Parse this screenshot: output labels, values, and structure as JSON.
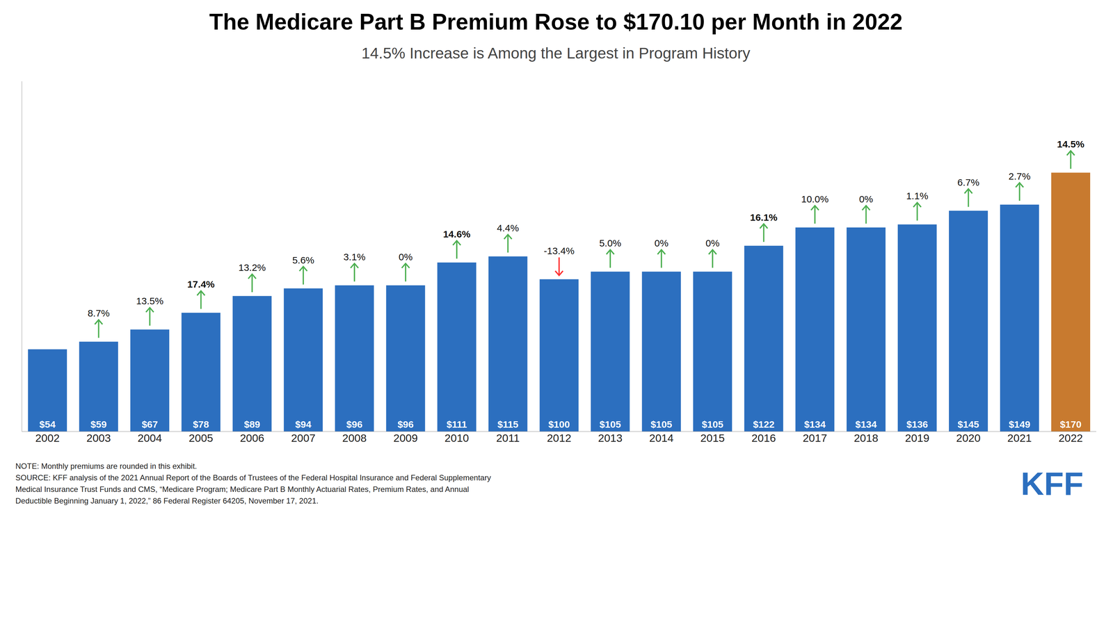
{
  "chart_data": {
    "type": "bar",
    "title": "The Medicare Part B Premium Rose to $170.10 per Month in 2022",
    "subtitle": "14.5% Increase is Among the Largest in Program History",
    "categories": [
      "2002",
      "2003",
      "2004",
      "2005",
      "2006",
      "2007",
      "2008",
      "2009",
      "2010",
      "2011",
      "2012",
      "2013",
      "2014",
      "2015",
      "2016",
      "2017",
      "2018",
      "2019",
      "2020",
      "2021",
      "2022"
    ],
    "values": [
      54,
      59,
      67,
      78,
      89,
      94,
      96,
      96,
      111,
      115,
      100,
      105,
      105,
      105,
      122,
      134,
      134,
      136,
      145,
      149,
      170
    ],
    "value_labels": [
      "$54",
      "$59",
      "$67",
      "$78",
      "$89",
      "$94",
      "$96",
      "$96",
      "$111",
      "$115",
      "$100",
      "$105",
      "$105",
      "$105",
      "$122",
      "$134",
      "$134",
      "$136",
      "$145",
      "$149",
      "$170"
    ],
    "data_labels": true,
    "colors": [
      "#2C6FBF",
      "#2C6FBF",
      "#2C6FBF",
      "#2C6FBF",
      "#2C6FBF",
      "#2C6FBF",
      "#2C6FBF",
      "#2C6FBF",
      "#2C6FBF",
      "#2C6FBF",
      "#2C6FBF",
      "#2C6FBF",
      "#2C6FBF",
      "#2C6FBF",
      "#2C6FBF",
      "#2C6FBF",
      "#2C6FBF",
      "#2C6FBF",
      "#2C6FBF",
      "#2C6FBF",
      "#C87A2F"
    ],
    "ylim": [
      0,
      230
    ],
    "tick_labels": "x",
    "grid": false,
    "annotations": [
      {
        "x": "2003",
        "text": "8.7%",
        "direction": "up",
        "color": "#4CAF50",
        "bold": false
      },
      {
        "x": "2004",
        "text": "13.5%",
        "direction": "up",
        "color": "#4CAF50",
        "bold": false
      },
      {
        "x": "2005",
        "text": "17.4%",
        "direction": "up",
        "color": "#4CAF50",
        "bold": true
      },
      {
        "x": "2006",
        "text": "13.2%",
        "direction": "up",
        "color": "#4CAF50",
        "bold": false
      },
      {
        "x": "2007",
        "text": "5.6%",
        "direction": "up",
        "color": "#4CAF50",
        "bold": false
      },
      {
        "x": "2008",
        "text": "3.1%",
        "direction": "up",
        "color": "#4CAF50",
        "bold": false
      },
      {
        "x": "2009",
        "text": "0%",
        "direction": "up",
        "color": "#4CAF50",
        "bold": false
      },
      {
        "x": "2010",
        "text": "14.6%",
        "direction": "up",
        "color": "#4CAF50",
        "bold": true
      },
      {
        "x": "2011",
        "text": "4.4%",
        "direction": "up",
        "color": "#4CAF50",
        "bold": false
      },
      {
        "x": "2012",
        "text": "-13.4%",
        "direction": "down",
        "color": "#FF3333",
        "bold": false
      },
      {
        "x": "2013",
        "text": "5.0%",
        "direction": "up",
        "color": "#4CAF50",
        "bold": false
      },
      {
        "x": "2014",
        "text": "0%",
        "direction": "up",
        "color": "#4CAF50",
        "bold": false
      },
      {
        "x": "2015",
        "text": "0%",
        "direction": "up",
        "color": "#4CAF50",
        "bold": false
      },
      {
        "x": "2016",
        "text": "16.1%",
        "direction": "up",
        "color": "#4CAF50",
        "bold": true
      },
      {
        "x": "2017",
        "text": "10.0%",
        "direction": "up",
        "color": "#4CAF50",
        "bold": false
      },
      {
        "x": "2018",
        "text": "0%",
        "direction": "up",
        "color": "#4CAF50",
        "bold": false
      },
      {
        "x": "2019",
        "text": "1.1%",
        "direction": "up",
        "color": "#4CAF50",
        "bold": false
      },
      {
        "x": "2020",
        "text": "6.7%",
        "direction": "up",
        "color": "#4CAF50",
        "bold": false
      },
      {
        "x": "2021",
        "text": "2.7%",
        "direction": "up",
        "color": "#4CAF50",
        "bold": false
      },
      {
        "x": "2022",
        "text": "14.5%",
        "direction": "up",
        "color": "#4CAF50",
        "bold": true
      }
    ],
    "notes": [
      "NOTE: Monthly premiums are rounded in this exhibit.",
      "SOURCE: KFF analysis of the 2021 Annual Report of the Boards of Trustees of the Federal Hospital Insurance and Federal Supplementary",
      "Medical Insurance Trust Funds and CMS, “Medicare Program; Medicare Part B Monthly Actuarial Rates, Premium Rates, and Annual",
      "Deductible Beginning January 1, 2022,” 86 Federal Register 64205, November 17, 2021."
    ],
    "logo": {
      "text": "KFF",
      "color": "#2C6FBF"
    }
  }
}
